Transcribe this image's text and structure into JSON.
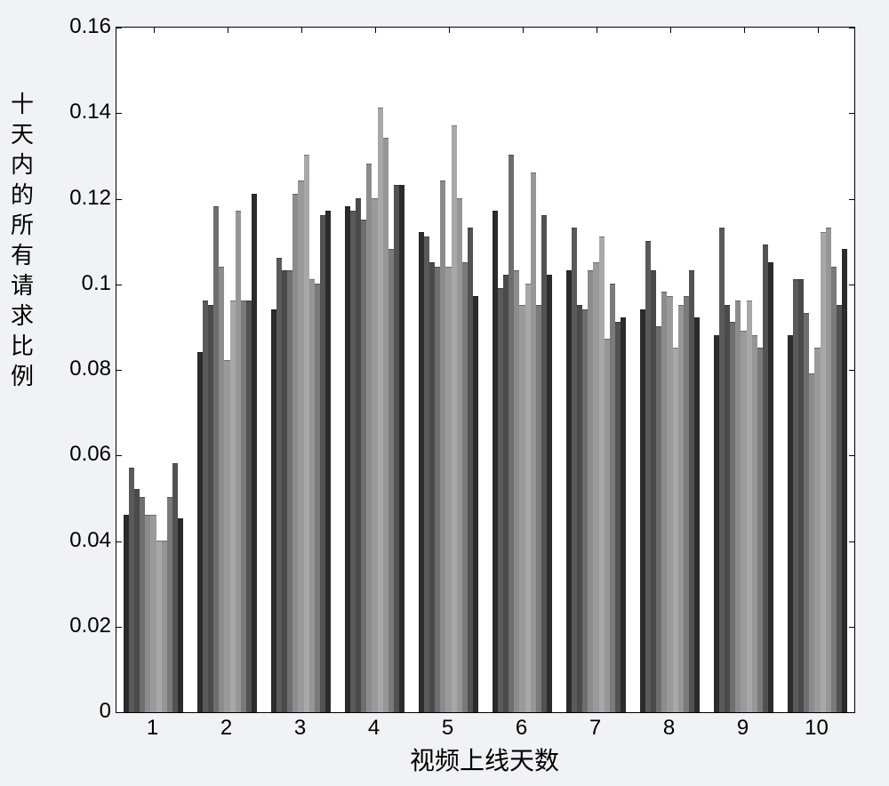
{
  "chart": {
    "type": "bar",
    "ylabel": "十天内的所有请求比例",
    "xlabel": "视频上线天数",
    "ylim": [
      0,
      0.16
    ],
    "ytick_step": 0.02,
    "yticks": [
      0,
      0.02,
      0.04,
      0.06,
      0.08,
      0.1,
      0.12,
      0.14,
      0.16
    ],
    "ytick_labels": [
      "0",
      "0.02",
      "0.04",
      "0.06",
      "0.08",
      "0.1",
      "0.12",
      "0.14",
      "0.16"
    ],
    "xticks": [
      1,
      2,
      3,
      4,
      5,
      6,
      7,
      8,
      9,
      10
    ],
    "background_color": "#ffffff",
    "page_bg": "#f0f2f5",
    "label_fontsize": 26,
    "tick_fontsize": 24,
    "bars_per_group": 10,
    "group_gap": 0.2,
    "bar_colors": [
      "#2b2b2b",
      "#5a5a5a",
      "#4a4a4a",
      "#6e6e6e",
      "#8c8c8c",
      "#9a9a9a",
      "#a8a8a8",
      "#969696",
      "#7a7a7a",
      "#525252"
    ],
    "categories": [
      "1",
      "2",
      "3",
      "4",
      "5",
      "6",
      "7",
      "8",
      "9",
      "10"
    ],
    "series": [
      [
        0.046,
        0.057,
        0.052,
        0.05,
        0.046,
        0.046,
        0.04,
        0.04,
        0.05,
        0.058,
        0.045
      ],
      [
        0.084,
        0.096,
        0.095,
        0.118,
        0.104,
        0.082,
        0.096,
        0.117,
        0.096,
        0.096,
        0.121
      ],
      [
        0.094,
        0.106,
        0.103,
        0.103,
        0.121,
        0.124,
        0.13,
        0.101,
        0.1,
        0.116,
        0.117
      ],
      [
        0.118,
        0.117,
        0.12,
        0.115,
        0.128,
        0.12,
        0.141,
        0.134,
        0.108,
        0.123,
        0.123
      ],
      [
        0.112,
        0.111,
        0.105,
        0.104,
        0.124,
        0.104,
        0.137,
        0.12,
        0.105,
        0.113,
        0.097
      ],
      [
        0.117,
        0.099,
        0.102,
        0.13,
        0.103,
        0.095,
        0.1,
        0.126,
        0.095,
        0.116,
        0.102
      ],
      [
        0.103,
        0.113,
        0.095,
        0.094,
        0.103,
        0.105,
        0.111,
        0.087,
        0.1,
        0.091,
        0.092
      ],
      [
        0.094,
        0.11,
        0.103,
        0.09,
        0.098,
        0.097,
        0.085,
        0.095,
        0.097,
        0.103,
        0.092
      ],
      [
        0.088,
        0.113,
        0.095,
        0.091,
        0.096,
        0.089,
        0.096,
        0.088,
        0.085,
        0.109,
        0.105
      ],
      [
        0.088,
        0.101,
        0.101,
        0.093,
        0.079,
        0.085,
        0.112,
        0.113,
        0.104,
        0.095,
        0.108
      ]
    ]
  }
}
